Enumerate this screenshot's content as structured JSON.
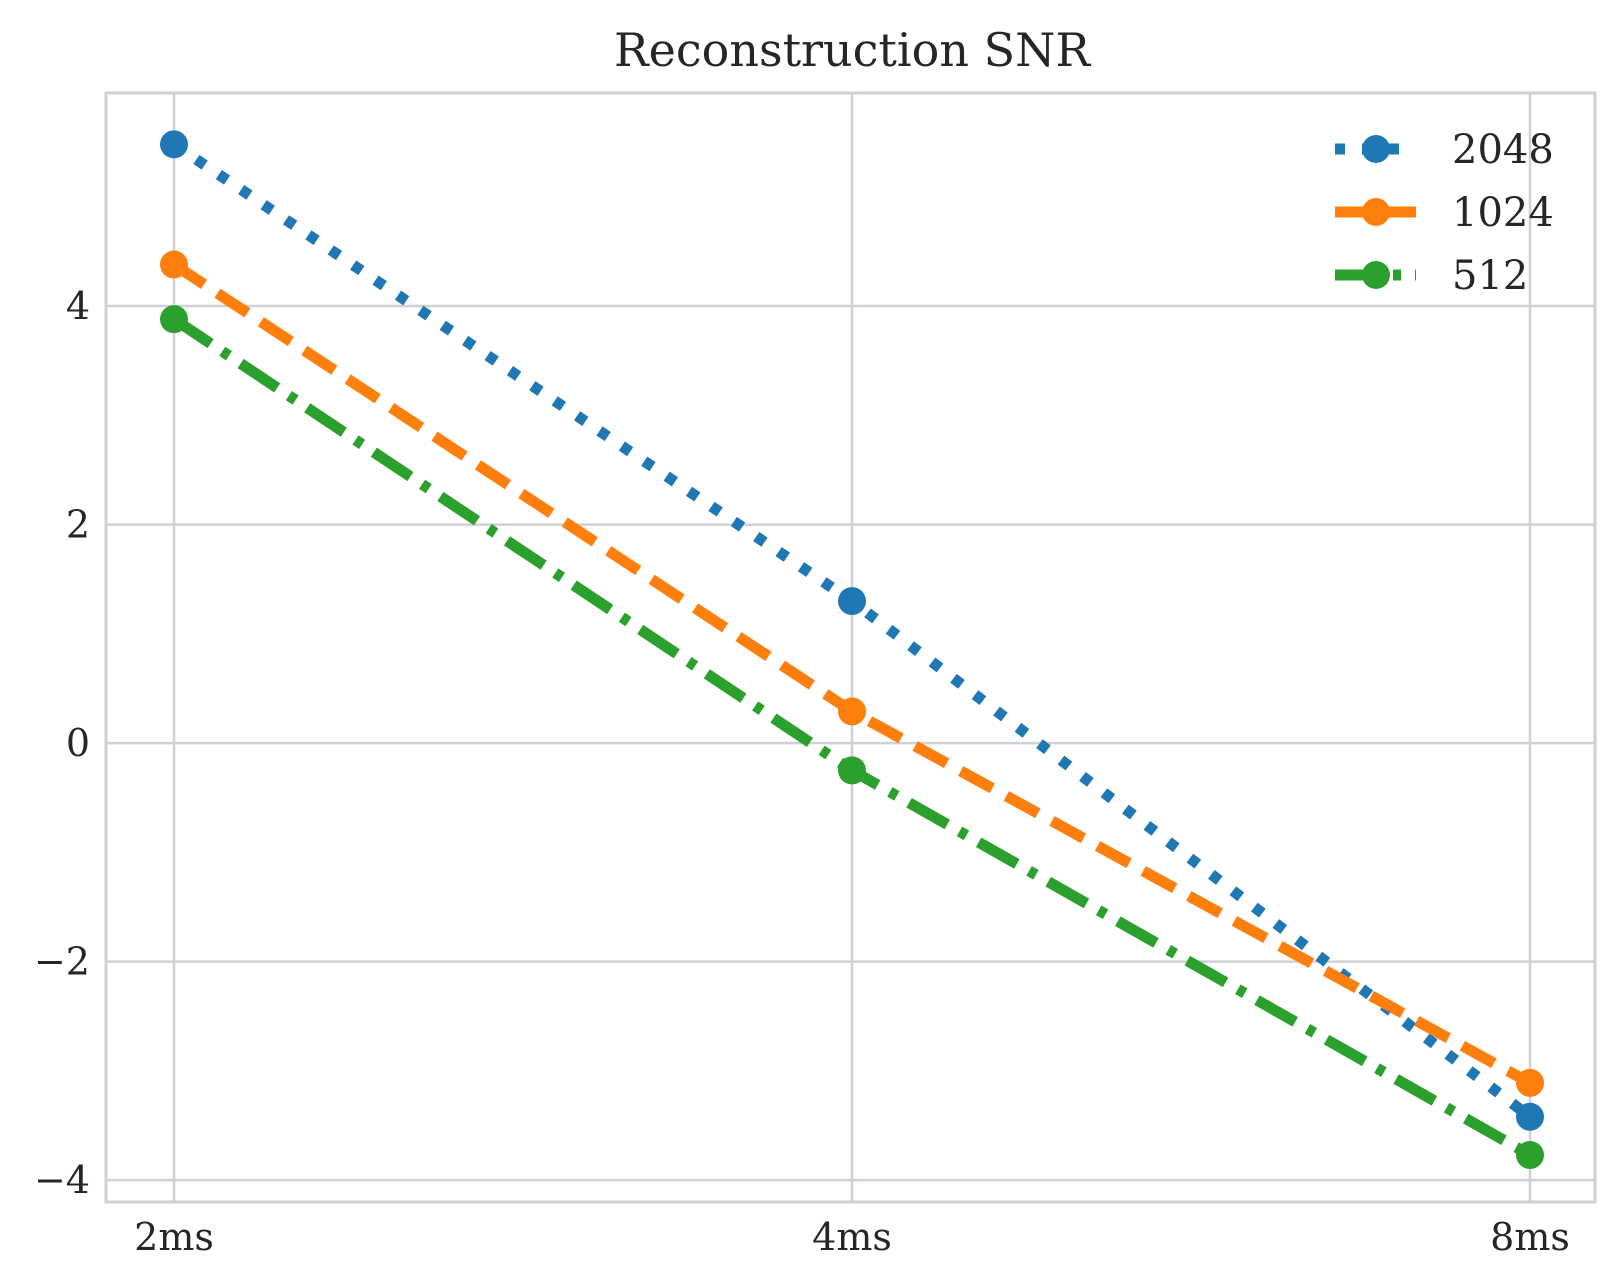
{
  "chart_data": {
    "type": "line",
    "title": "Reconstruction SNR",
    "xlabel": "",
    "ylabel": "",
    "categories": [
      "2ms",
      "4ms",
      "8ms"
    ],
    "ylim": [
      -4.2,
      5.95
    ],
    "yticks": [
      -4,
      -2,
      0,
      2,
      4
    ],
    "ytick_labels": [
      "−4",
      "−2",
      "0",
      "2",
      "4"
    ],
    "grid": true,
    "legend_position": "top-right",
    "series": [
      {
        "name": "2048",
        "values": [
          5.48,
          1.3,
          -3.42
        ],
        "color": "#1f77b4",
        "style": "dotted"
      },
      {
        "name": "1024",
        "values": [
          4.38,
          0.29,
          -3.11
        ],
        "color": "#ff7f0e",
        "style": "dashed"
      },
      {
        "name": "512",
        "values": [
          3.88,
          -0.25,
          -3.77
        ],
        "color": "#2ca02c",
        "style": "dashdot"
      }
    ]
  }
}
